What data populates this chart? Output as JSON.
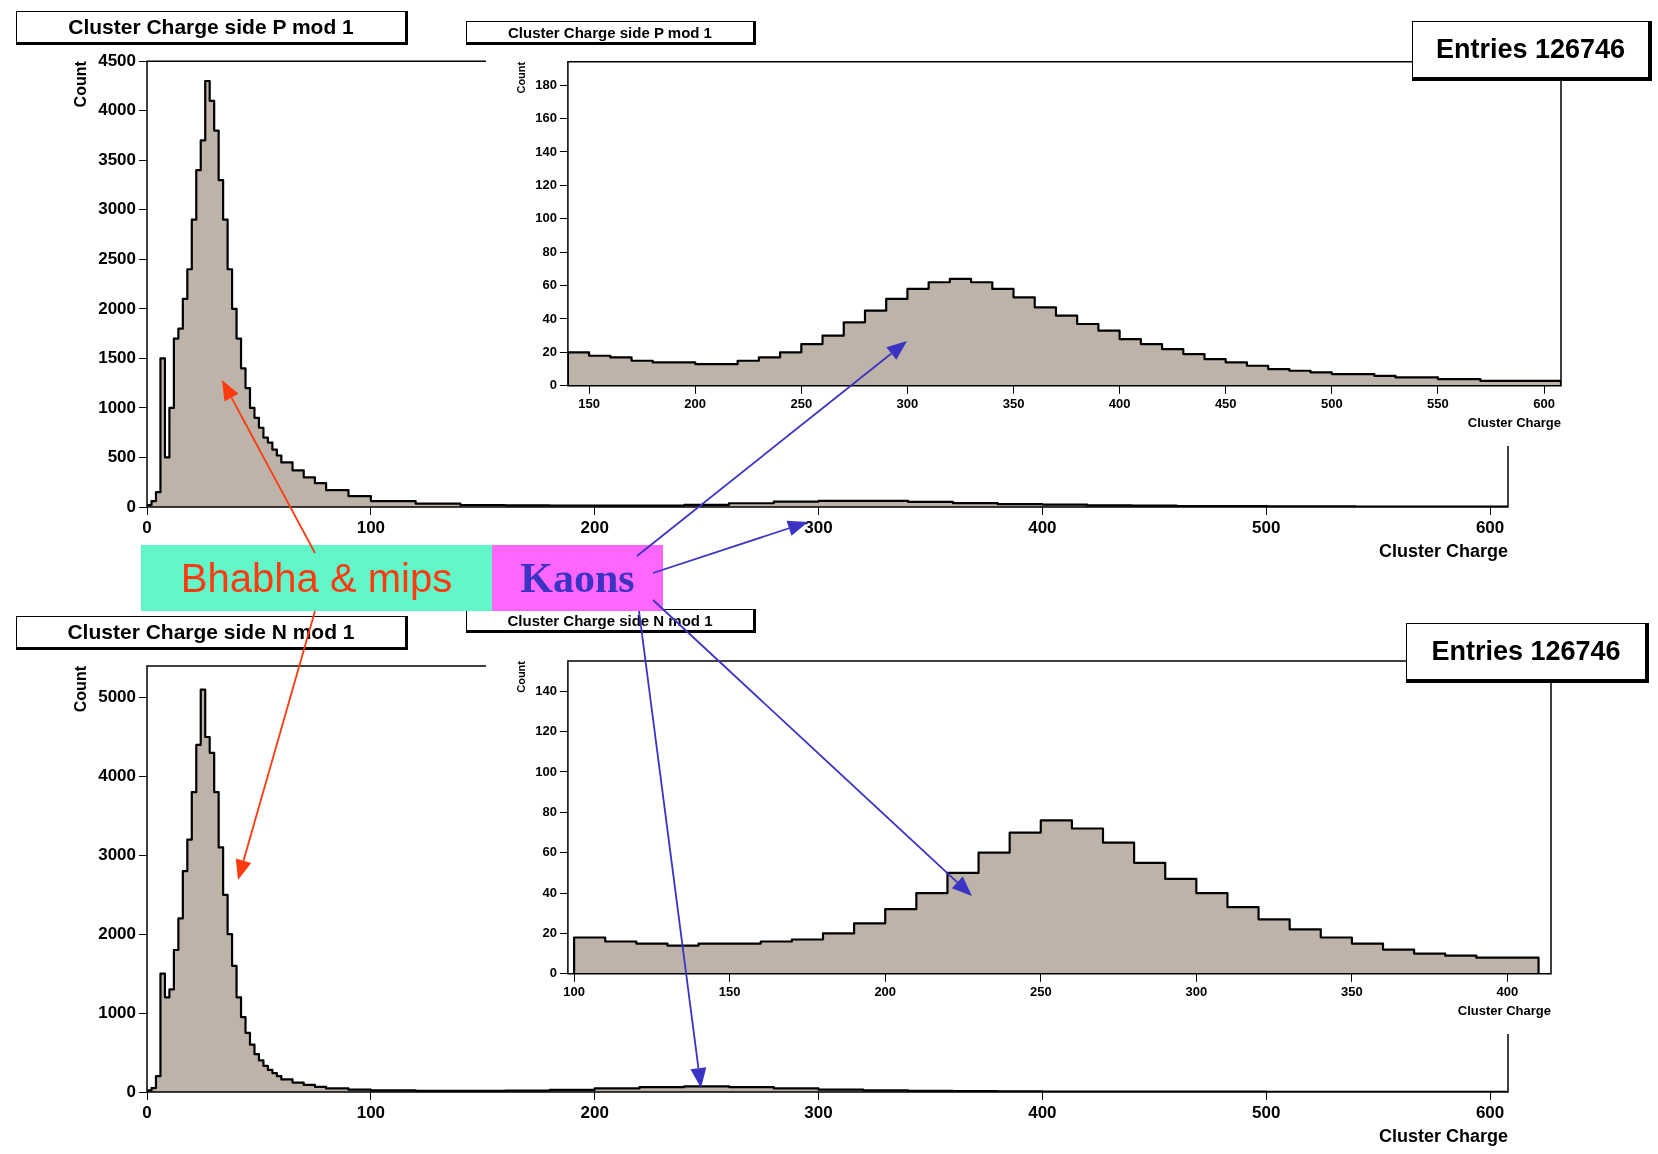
{
  "chart_data": [
    {
      "type": "histogram",
      "title": "Cluster Charge side P mod 1",
      "xlabel": "Cluster Charge",
      "ylabel": "Count",
      "color": "#bdb3a8",
      "xlim": [
        0,
        608
      ],
      "ylim": [
        0,
        4500
      ],
      "xticks": [
        0,
        100,
        200,
        300,
        400,
        500,
        600
      ],
      "yticks": [
        0,
        500,
        1000,
        1500,
        2000,
        2500,
        3000,
        3500,
        4000,
        4500
      ],
      "annotations": [
        "Entries  126746",
        "Bhabha & mips",
        "Kaons"
      ],
      "bins": [
        0,
        2,
        4,
        6,
        8,
        10,
        12,
        14,
        16,
        18,
        20,
        22,
        24,
        26,
        28,
        30,
        32,
        34,
        36,
        38,
        40,
        42,
        44,
        46,
        48,
        50,
        52,
        54,
        56,
        58,
        60,
        65,
        70,
        75,
        80,
        90,
        100,
        120,
        140,
        160,
        180,
        200,
        220,
        240,
        260,
        280,
        300,
        320,
        340,
        360,
        380,
        400,
        420,
        440,
        460,
        480,
        500,
        540,
        580,
        608
      ],
      "values": [
        20,
        60,
        150,
        1500,
        500,
        1000,
        1700,
        1800,
        2100,
        2400,
        2900,
        3400,
        3700,
        4300,
        4100,
        3800,
        3300,
        2900,
        2400,
        2000,
        1700,
        1400,
        1200,
        1000,
        900,
        800,
        700,
        650,
        580,
        520,
        450,
        370,
        300,
        240,
        170,
        110,
        60,
        35,
        20,
        17,
        15,
        14,
        14,
        22,
        38,
        55,
        62,
        62,
        52,
        40,
        30,
        24,
        17,
        13,
        10,
        8,
        6,
        4,
        3
      ]
    },
    {
      "type": "histogram",
      "title": "Cluster Charge side P mod 1",
      "xlabel": "Cluster Charge",
      "ylabel": "Count",
      "color": "#bdb3a8",
      "xlim": [
        140,
        608
      ],
      "ylim": [
        0,
        194
      ],
      "xticks": [
        150,
        200,
        250,
        300,
        350,
        400,
        450,
        500,
        550,
        600
      ],
      "yticks": [
        0,
        20,
        40,
        60,
        80,
        100,
        120,
        140,
        160,
        180
      ],
      "bins": [
        140,
        150,
        160,
        170,
        180,
        190,
        200,
        210,
        220,
        230,
        240,
        250,
        260,
        270,
        280,
        290,
        300,
        310,
        320,
        330,
        340,
        350,
        360,
        370,
        380,
        390,
        400,
        410,
        420,
        430,
        440,
        450,
        460,
        470,
        480,
        490,
        500,
        510,
        520,
        530,
        540,
        550,
        560,
        570,
        580,
        590,
        600,
        608
      ],
      "values": [
        20,
        18,
        17,
        15,
        14,
        14,
        13,
        13,
        15,
        17,
        20,
        25,
        30,
        38,
        45,
        52,
        58,
        62,
        64,
        62,
        58,
        53,
        47,
        42,
        37,
        33,
        28,
        25,
        22,
        19,
        16,
        14,
        12,
        10,
        9,
        8,
        7,
        7,
        6,
        5,
        5,
        4,
        4,
        3,
        3,
        3,
        3
      ]
    },
    {
      "type": "histogram",
      "title": "Cluster Charge side N mod 1",
      "xlabel": "Cluster Charge",
      "ylabel": "Count",
      "color": "#bdb3a8",
      "xlim": [
        0,
        608
      ],
      "ylim": [
        0,
        5400
      ],
      "xticks": [
        0,
        100,
        200,
        300,
        400,
        500,
        600
      ],
      "yticks": [
        0,
        1000,
        2000,
        3000,
        4000,
        5000
      ],
      "annotations": [
        "Entries  126746"
      ],
      "bins": [
        0,
        2,
        4,
        6,
        8,
        10,
        12,
        14,
        16,
        18,
        20,
        22,
        24,
        26,
        28,
        30,
        32,
        34,
        36,
        38,
        40,
        42,
        44,
        46,
        48,
        50,
        52,
        54,
        56,
        58,
        60,
        65,
        70,
        75,
        80,
        90,
        100,
        120,
        140,
        160,
        180,
        200,
        220,
        240,
        260,
        280,
        300,
        320,
        340,
        360,
        380,
        400,
        440,
        500,
        608
      ],
      "values": [
        20,
        50,
        200,
        1500,
        1200,
        1300,
        1800,
        2200,
        2800,
        3200,
        3800,
        4400,
        5100,
        4500,
        4300,
        3800,
        3100,
        2500,
        2000,
        1600,
        1200,
        950,
        750,
        600,
        480,
        400,
        330,
        280,
        240,
        200,
        160,
        120,
        90,
        65,
        45,
        30,
        20,
        15,
        15,
        17,
        28,
        45,
        62,
        72,
        62,
        45,
        30,
        20,
        13,
        10,
        8,
        6,
        4,
        2
      ]
    },
    {
      "type": "histogram",
      "title": "Cluster Charge side N mod 1",
      "xlabel": "Cluster Charge",
      "ylabel": "Count",
      "color": "#bdb3a8",
      "xlim": [
        98,
        414
      ],
      "ylim": [
        0,
        155
      ],
      "xticks": [
        100,
        150,
        200,
        250,
        300,
        350,
        400
      ],
      "yticks": [
        0,
        20,
        40,
        60,
        80,
        100,
        120,
        140
      ],
      "bins": [
        100,
        110,
        120,
        130,
        140,
        150,
        160,
        170,
        180,
        190,
        200,
        210,
        220,
        230,
        240,
        250,
        260,
        270,
        280,
        290,
        300,
        310,
        320,
        330,
        340,
        350,
        360,
        370,
        380,
        390,
        400,
        410
      ],
      "values": [
        18,
        16,
        15,
        14,
        15,
        15,
        16,
        17,
        20,
        25,
        32,
        40,
        50,
        60,
        70,
        76,
        72,
        65,
        55,
        47,
        40,
        33,
        27,
        22,
        18,
        15,
        12,
        10,
        9,
        8,
        8
      ]
    }
  ]
}
